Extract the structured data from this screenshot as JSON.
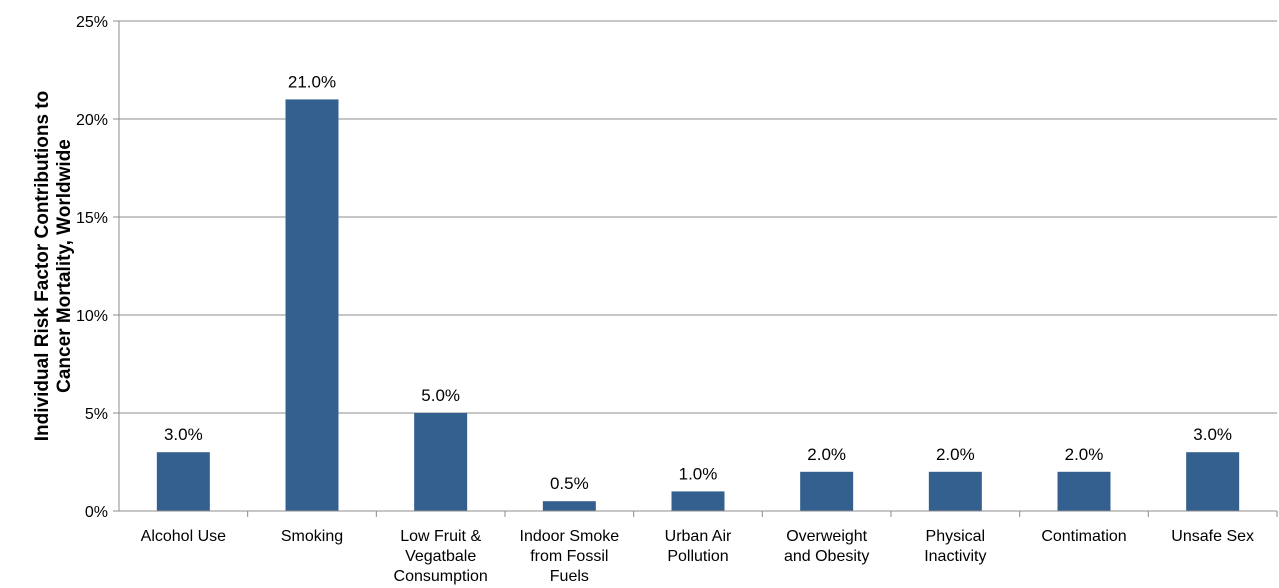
{
  "chart_data": {
    "type": "bar",
    "ylabel_lines": [
      "Individual Risk Factor Contributions to",
      "Cancer Mortality, Worldwide"
    ],
    "ylim": [
      0,
      25
    ],
    "yticks": [
      0,
      5,
      10,
      15,
      20,
      25
    ],
    "ytick_labels": [
      "0%",
      "5%",
      "10%",
      "15%",
      "20%",
      "25%"
    ],
    "grid": true,
    "bar_color": "#34608f",
    "categories": [
      [
        "Alcohol Use"
      ],
      [
        "Smoking"
      ],
      [
        "Low Fruit &",
        "Vegatbale",
        "Consumption"
      ],
      [
        "Indoor Smoke",
        "from Fossil",
        "Fuels"
      ],
      [
        "Urban Air",
        "Pollution"
      ],
      [
        "Overweight",
        "and Obesity"
      ],
      [
        "Physical",
        "Inactivity"
      ],
      [
        "Contimation"
      ],
      [
        "Unsafe Sex"
      ]
    ],
    "values": [
      3.0,
      21.0,
      5.0,
      0.5,
      1.0,
      2.0,
      2.0,
      2.0,
      3.0
    ],
    "data_labels": [
      "3.0%",
      "21.0%",
      "5.0%",
      "0.5%",
      "1.0%",
      "2.0%",
      "2.0%",
      "2.0%",
      "3.0%"
    ]
  }
}
